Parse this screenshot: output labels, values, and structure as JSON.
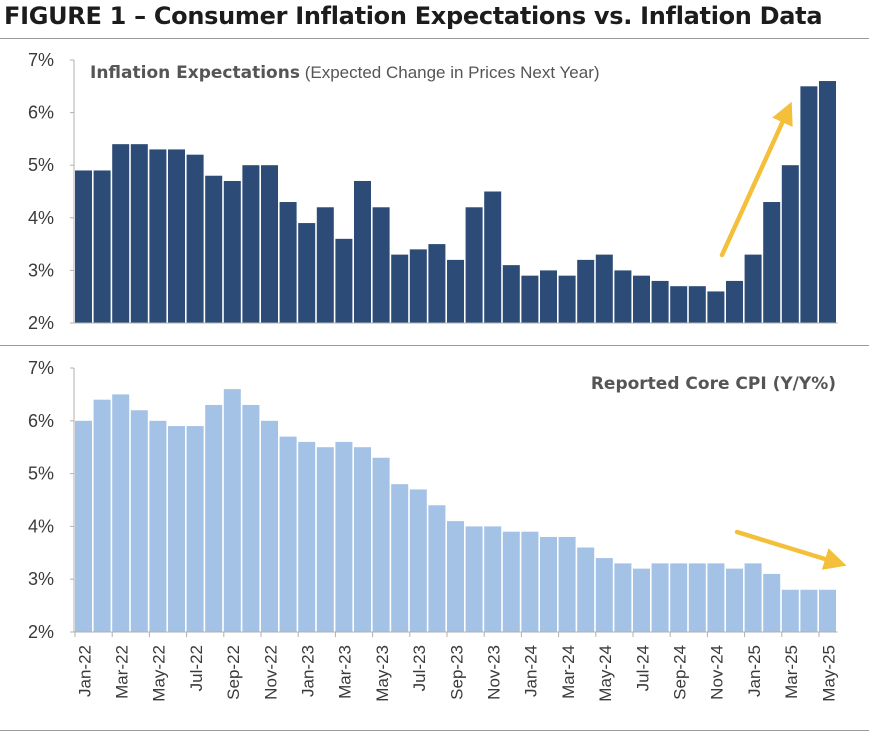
{
  "figure": {
    "title": "FIGURE 1 – Consumer Inflation Expectations vs. Inflation Data"
  },
  "colors": {
    "expectations_bar": "#2c4b76",
    "cpi_bar": "#a4c2e6",
    "arrow": "#f4bf3b"
  },
  "chart_data": [
    {
      "type": "bar",
      "title_bold": "Inflation Expectations",
      "title_rest": " (Expected Change in Prices Next Year)",
      "ylim": [
        2,
        7
      ],
      "yticks": [
        "2%",
        "3%",
        "4%",
        "5%",
        "6%",
        "7%"
      ],
      "categories": [
        "Jan-22",
        "Feb-22",
        "Mar-22",
        "Apr-22",
        "May-22",
        "Jun-22",
        "Jul-22",
        "Aug-22",
        "Sep-22",
        "Oct-22",
        "Nov-22",
        "Dec-22",
        "Jan-23",
        "Feb-23",
        "Mar-23",
        "Apr-23",
        "May-23",
        "Jun-23",
        "Jul-23",
        "Aug-23",
        "Sep-23",
        "Oct-23",
        "Nov-23",
        "Dec-23",
        "Jan-24",
        "Feb-24",
        "Mar-24",
        "Apr-24",
        "May-24",
        "Jun-24",
        "Jul-24",
        "Aug-24",
        "Sep-24",
        "Oct-24",
        "Nov-24",
        "Dec-24",
        "Jan-25",
        "Feb-25",
        "Mar-25",
        "Apr-25",
        "May-25"
      ],
      "values": [
        4.9,
        4.9,
        5.4,
        5.4,
        5.3,
        5.3,
        5.2,
        4.8,
        4.7,
        5.0,
        5.0,
        4.3,
        3.9,
        4.2,
        3.6,
        4.7,
        4.2,
        3.3,
        3.4,
        3.5,
        3.2,
        4.2,
        4.5,
        3.1,
        2.9,
        3.0,
        2.9,
        3.2,
        3.3,
        3.0,
        2.9,
        2.8,
        2.7,
        2.7,
        2.6,
        2.8,
        3.3,
        4.3,
        5.0,
        6.5,
        6.6
      ],
      "trend_arrow": "upward, late 2024 to 2025"
    },
    {
      "type": "bar",
      "title_bold": "Reported Core CPI (Y/Y%)",
      "ylim": [
        2,
        7
      ],
      "yticks": [
        "2%",
        "3%",
        "4%",
        "5%",
        "6%",
        "7%"
      ],
      "categories": [
        "Jan-22",
        "Feb-22",
        "Mar-22",
        "Apr-22",
        "May-22",
        "Jun-22",
        "Jul-22",
        "Aug-22",
        "Sep-22",
        "Oct-22",
        "Nov-22",
        "Dec-22",
        "Jan-23",
        "Feb-23",
        "Mar-23",
        "Apr-23",
        "May-23",
        "Jun-23",
        "Jul-23",
        "Aug-23",
        "Sep-23",
        "Oct-23",
        "Nov-23",
        "Dec-23",
        "Jan-24",
        "Feb-24",
        "Mar-24",
        "Apr-24",
        "May-24",
        "Jun-24",
        "Jul-24",
        "Aug-24",
        "Sep-24",
        "Oct-24",
        "Nov-24",
        "Dec-24",
        "Jan-25",
        "Feb-25",
        "Mar-25",
        "Apr-25",
        "May-25"
      ],
      "values": [
        6.0,
        6.4,
        6.5,
        6.2,
        6.0,
        5.9,
        5.9,
        6.3,
        6.6,
        6.3,
        6.0,
        5.7,
        5.6,
        5.5,
        5.6,
        5.5,
        5.3,
        4.8,
        4.7,
        4.4,
        4.1,
        4.0,
        4.0,
        3.9,
        3.9,
        3.8,
        3.8,
        3.6,
        3.4,
        3.3,
        3.2,
        3.3,
        3.3,
        3.3,
        3.3,
        3.2,
        3.3,
        3.1,
        2.8,
        2.8,
        2.8
      ],
      "trend_arrow": "downward, 2025",
      "xtick_labels": [
        "Jan-22",
        "Mar-22",
        "May-22",
        "Jul-22",
        "Sep-22",
        "Nov-22",
        "Jan-23",
        "Mar-23",
        "May-23",
        "Jul-23",
        "Sep-23",
        "Nov-23",
        "Jan-24",
        "Mar-24",
        "May-24",
        "Jul-24",
        "Sep-24",
        "Nov-24",
        "Jan-25",
        "Mar-25",
        "May-25"
      ]
    }
  ]
}
